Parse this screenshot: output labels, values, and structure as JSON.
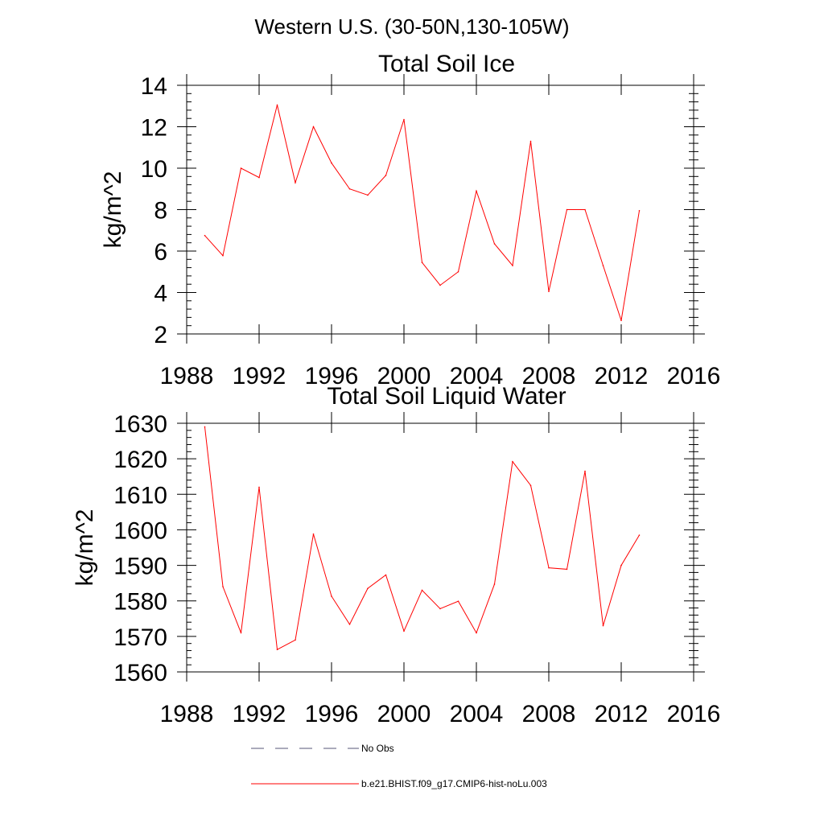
{
  "figure": {
    "suptitle": "Western U.S. (30-50N,130-105W)"
  },
  "chart_data": [
    {
      "type": "line",
      "title": "Total Soil Ice",
      "xlabel": "",
      "ylabel": "kg/m^2",
      "xlim": [
        1988,
        2016
      ],
      "ylim": [
        2,
        14
      ],
      "xticks": [
        1988,
        1992,
        1996,
        2000,
        2004,
        2008,
        2012,
        2016
      ],
      "xtick_labels": [
        "1988",
        "1992",
        "1996",
        "2000",
        "2004",
        "2008",
        "2012",
        "2016"
      ],
      "yticks": [
        2,
        4,
        6,
        8,
        10,
        12,
        14
      ],
      "ytick_labels": [
        "2",
        "4",
        "6",
        "8",
        "10",
        "12",
        "14"
      ],
      "grid": false,
      "x": [
        1989,
        1990,
        1991,
        1992,
        1993,
        1994,
        1995,
        1996,
        1997,
        1998,
        1999,
        2000,
        2001,
        2002,
        2003,
        2004,
        2005,
        2006,
        2007,
        2008,
        2009,
        2010,
        2011,
        2012,
        2013
      ],
      "series": [
        {
          "name": "b.e21.BHIST.f09_g17.CMIP6-hist-noLu.003",
          "color": "#ff0000",
          "values": [
            6.75,
            5.78,
            10.0,
            9.55,
            13.05,
            9.3,
            12.0,
            10.25,
            9.0,
            8.7,
            9.65,
            12.35,
            5.45,
            4.35,
            5.0,
            8.9,
            6.35,
            5.3,
            11.3,
            4.05,
            8.0,
            8.0,
            5.3,
            2.65,
            7.95
          ]
        }
      ]
    },
    {
      "type": "line",
      "title": "Total Soil Liquid Water",
      "xlabel": "",
      "ylabel": "kg/m^2",
      "xlim": [
        1988,
        2016
      ],
      "ylim": [
        1560,
        1630
      ],
      "xticks": [
        1988,
        1992,
        1996,
        2000,
        2004,
        2008,
        2012,
        2016
      ],
      "xtick_labels": [
        "1988",
        "1992",
        "1996",
        "2000",
        "2004",
        "2008",
        "2012",
        "2016"
      ],
      "yticks": [
        1560,
        1570,
        1580,
        1590,
        1600,
        1610,
        1620,
        1630
      ],
      "ytick_labels": [
        "1560",
        "1570",
        "1580",
        "1590",
        "1600",
        "1610",
        "1620",
        "1630"
      ],
      "grid": false,
      "x": [
        1989,
        1990,
        1991,
        1992,
        1993,
        1994,
        1995,
        1996,
        1997,
        1998,
        1999,
        2000,
        2001,
        2002,
        2003,
        2004,
        2005,
        2006,
        2007,
        2008,
        2009,
        2010,
        2011,
        2012,
        2013
      ],
      "series": [
        {
          "name": "b.e21.BHIST.f09_g17.CMIP6-hist-noLu.003",
          "color": "#ff0000",
          "values": [
            1629.0,
            1584.0,
            1571.0,
            1612.0,
            1566.3,
            1569.0,
            1598.8,
            1581.3,
            1573.4,
            1583.5,
            1587.3,
            1571.5,
            1583.0,
            1577.8,
            1579.9,
            1571.0,
            1584.7,
            1619.2,
            1612.5,
            1589.3,
            1588.9,
            1616.5,
            1573.0,
            1590.0,
            1598.5
          ]
        }
      ]
    }
  ],
  "legend": {
    "placement": "bottom",
    "items": [
      {
        "label": "No Obs",
        "style": "dashed",
        "color": "#555577"
      },
      {
        "label": "b.e21.BHIST.f09_g17.CMIP6-hist-noLu.003",
        "style": "solid",
        "color": "#ff0000"
      }
    ]
  }
}
